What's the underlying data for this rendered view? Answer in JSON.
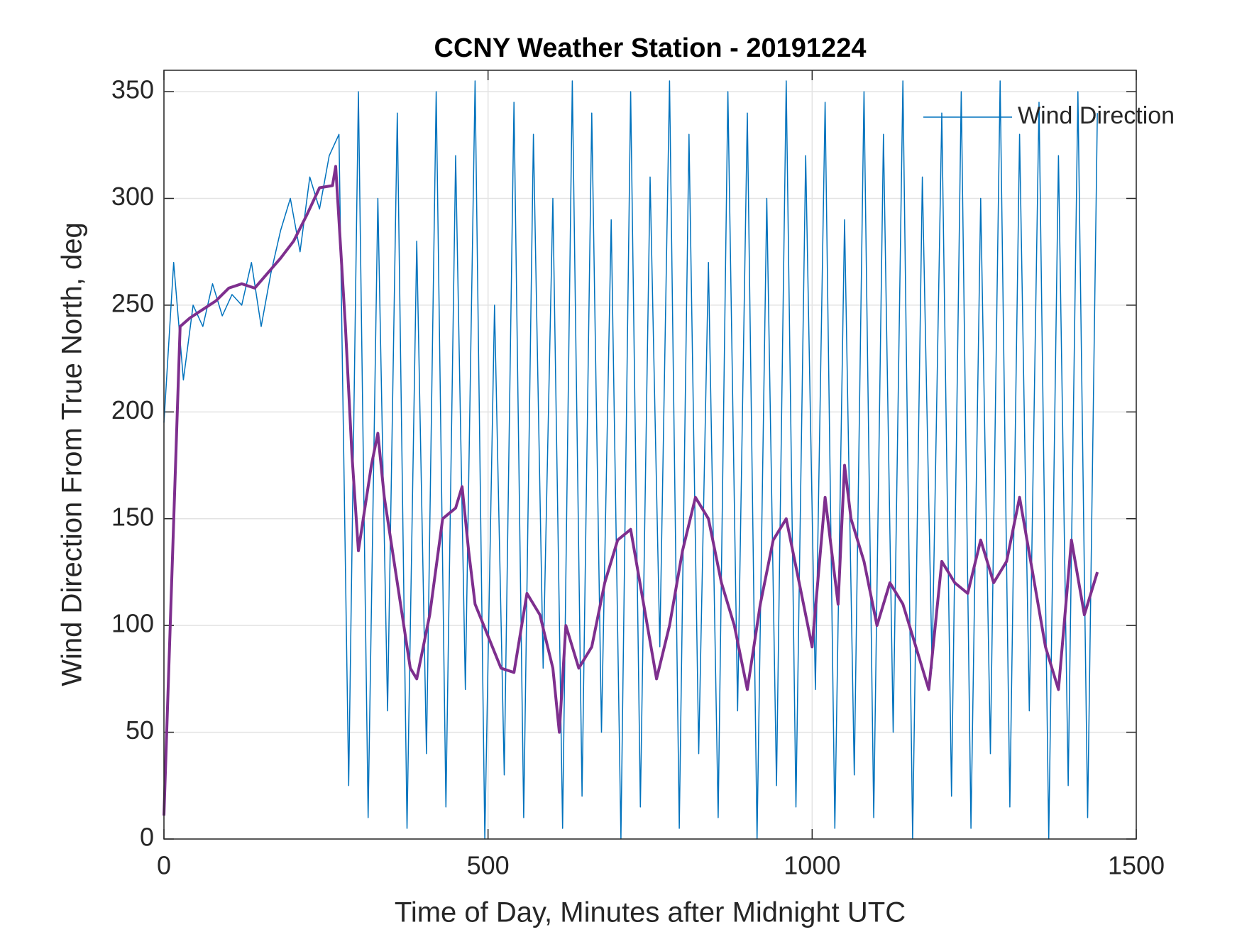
{
  "chart_data": {
    "type": "line",
    "title": "CCNY Weather Station - 20191224",
    "xlabel": "Time of Day, Minutes after Midnight UTC",
    "ylabel": "Wind Direction From True North, deg",
    "xlim": [
      0,
      1500
    ],
    "xticks": [
      0,
      500,
      1000,
      1500
    ],
    "ylim": [
      0,
      360
    ],
    "yticks": [
      0,
      50,
      100,
      150,
      200,
      250,
      300,
      350
    ],
    "grid": true,
    "legend": "upper right",
    "series": [
      {
        "name": "Wind Direction",
        "color": "#0072bd",
        "width": 1.5,
        "x": [
          0,
          15,
          30,
          45,
          60,
          75,
          90,
          105,
          120,
          135,
          150,
          165,
          180,
          195,
          210,
          225,
          240,
          255,
          270,
          285,
          300,
          315,
          330,
          345,
          360,
          375,
          390,
          405,
          420,
          435,
          450,
          465,
          480,
          495,
          510,
          525,
          540,
          555,
          570,
          585,
          600,
          615,
          630,
          645,
          660,
          675,
          690,
          705,
          720,
          735,
          750,
          765,
          780,
          795,
          810,
          825,
          840,
          855,
          870,
          885,
          900,
          915,
          930,
          945,
          960,
          975,
          990,
          1005,
          1020,
          1035,
          1050,
          1065,
          1080,
          1095,
          1110,
          1125,
          1140,
          1155,
          1170,
          1185,
          1200,
          1215,
          1230,
          1245,
          1260,
          1275,
          1290,
          1305,
          1320,
          1335,
          1350,
          1365,
          1380,
          1395,
          1410,
          1425,
          1440
        ],
        "values": [
          195,
          270,
          215,
          250,
          240,
          260,
          245,
          255,
          250,
          270,
          240,
          265,
          285,
          300,
          275,
          310,
          295,
          320,
          330,
          25,
          350,
          10,
          300,
          60,
          340,
          5,
          280,
          40,
          350,
          15,
          320,
          70,
          355,
          0,
          250,
          30,
          345,
          10,
          330,
          80,
          300,
          5,
          355,
          20,
          340,
          50,
          290,
          0,
          350,
          15,
          310,
          90,
          355,
          5,
          330,
          40,
          270,
          10,
          350,
          60,
          340,
          0,
          300,
          25,
          355,
          15,
          320,
          70,
          345,
          5,
          290,
          30,
          350,
          10,
          330,
          50,
          355,
          0,
          310,
          80,
          340,
          20,
          350,
          5,
          300,
          40,
          355,
          15,
          330,
          60,
          345,
          0,
          320,
          25,
          350,
          10,
          340
        ]
      },
      {
        "color": "#7e2f8e",
        "width": 4,
        "x": [
          0,
          25,
          40,
          60,
          80,
          100,
          120,
          140,
          160,
          180,
          200,
          220,
          240,
          260,
          265,
          280,
          290,
          300,
          320,
          330,
          340,
          360,
          380,
          390,
          410,
          430,
          450,
          460,
          470,
          480,
          500,
          520,
          540,
          560,
          580,
          600,
          610,
          620,
          640,
          660,
          680,
          700,
          720,
          740,
          760,
          780,
          800,
          820,
          840,
          860,
          880,
          900,
          920,
          940,
          960,
          980,
          1000,
          1020,
          1040,
          1050,
          1060,
          1080,
          1100,
          1120,
          1140,
          1160,
          1180,
          1200,
          1220,
          1240,
          1260,
          1280,
          1300,
          1320,
          1340,
          1360,
          1380,
          1400,
          1420,
          1440
        ],
        "values": [
          11,
          240,
          244,
          248,
          252,
          258,
          260,
          258,
          265,
          272,
          280,
          292,
          305,
          306,
          315,
          240,
          180,
          135,
          175,
          190,
          160,
          120,
          80,
          75,
          105,
          150,
          155,
          165,
          135,
          110,
          95,
          80,
          78,
          115,
          105,
          80,
          50,
          100,
          80,
          90,
          120,
          140,
          145,
          110,
          75,
          100,
          135,
          160,
          150,
          120,
          100,
          70,
          110,
          140,
          150,
          120,
          90,
          160,
          110,
          175,
          150,
          130,
          100,
          120,
          110,
          90,
          70,
          130,
          120,
          115,
          140,
          120,
          130,
          160,
          125,
          90,
          70,
          140,
          105,
          125
        ]
      }
    ]
  }
}
